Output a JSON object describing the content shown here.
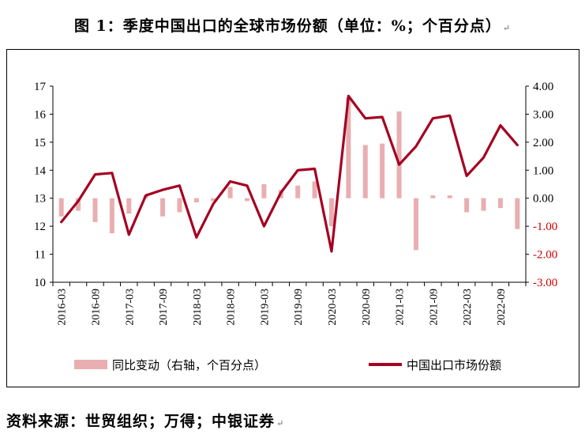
{
  "title": "图 1：季度中国出口的全球市场份额（单位：%；个百分点）",
  "source": "资料来源：世贸组织；万得；中银证券",
  "colors": {
    "bar": "#e9aeb0",
    "line": "#a50021",
    "right_axis_text": "#cc0000"
  },
  "chart_data": {
    "type": "bar+line",
    "categories": [
      "2016-03",
      "2016-06",
      "2016-09",
      "2016-12",
      "2017-03",
      "2017-06",
      "2017-09",
      "2017-12",
      "2018-03",
      "2018-06",
      "2018-09",
      "2018-12",
      "2019-03",
      "2019-06",
      "2019-09",
      "2019-12",
      "2020-03",
      "2020-06",
      "2020-09",
      "2020-12",
      "2021-03",
      "2021-06",
      "2021-09",
      "2021-12",
      "2022-03",
      "2022-06",
      "2022-09",
      "2022-12"
    ],
    "x_tick_labels": [
      "2016-03",
      "2016-09",
      "2017-03",
      "2017-09",
      "2018-03",
      "2018-09",
      "2019-03",
      "2019-09",
      "2020-03",
      "2020-09",
      "2021-03",
      "2021-09",
      "2022-03",
      "2022-09"
    ],
    "left_axis": {
      "min": 10,
      "max": 17,
      "ticks": [
        "10",
        "11",
        "12",
        "13",
        "14",
        "15",
        "16",
        "17"
      ]
    },
    "right_axis": {
      "min": -3,
      "max": 4,
      "ticks": [
        "-3.00",
        "-2.00",
        "-1.00",
        "0.00",
        "1.00",
        "2.00",
        "3.00",
        "4.00"
      ]
    },
    "series": [
      {
        "name": "同比变动（右轴，个百分点）",
        "axis": "right",
        "kind": "bar",
        "values": [
          -0.65,
          -0.45,
          -0.85,
          -1.25,
          -0.55,
          0.1,
          -0.65,
          -0.5,
          -0.15,
          -0.1,
          0.4,
          -0.1,
          0.5,
          0.3,
          0.45,
          0.6,
          -1.0,
          3.6,
          1.9,
          1.95,
          3.1,
          -1.85,
          0.1,
          0.1,
          -0.5,
          -0.45,
          -0.35,
          -1.1
        ]
      },
      {
        "name": "中国出口市场份额",
        "axis": "left",
        "kind": "line",
        "values": [
          12.15,
          12.9,
          13.85,
          13.9,
          11.7,
          13.1,
          13.3,
          13.45,
          11.6,
          12.8,
          13.6,
          13.45,
          12.0,
          13.2,
          14.0,
          14.05,
          11.1,
          16.65,
          15.85,
          15.9,
          14.2,
          14.85,
          15.85,
          15.95,
          13.8,
          14.45,
          15.6,
          14.9
        ]
      }
    ],
    "legend": [
      "同比变动（右轴，个百分点）",
      "中国出口市场份额"
    ],
    "legend_position": "bottom"
  }
}
